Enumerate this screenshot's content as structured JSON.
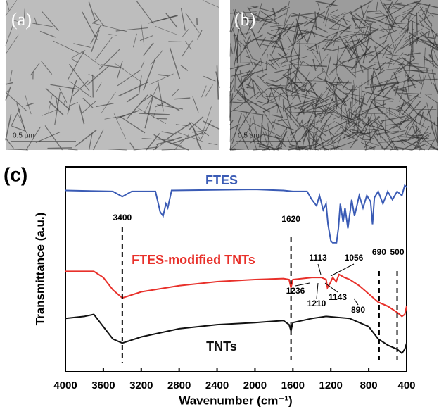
{
  "panels": [
    {
      "label": "(a)",
      "scale_bar": "0.5 μm"
    },
    {
      "label": "(b)",
      "scale_bar": "0.5 μm"
    }
  ],
  "chart_data": {
    "type": "line",
    "label": "(c)",
    "x_label": "Wavenumber (cm⁻¹)",
    "y_label": "Transmittance (a.u.)",
    "xlim": [
      4000,
      400
    ],
    "ylim": [
      0,
      100
    ],
    "xticks": [
      4000,
      3600,
      3200,
      2800,
      2400,
      2000,
      1600,
      1200,
      800,
      400
    ],
    "series": [
      {
        "name": "FTES",
        "color": "#3a5bb5",
        "x": [
          4000,
          3500,
          3400,
          3300,
          3050,
          3000,
          2970,
          2940,
          2920,
          2880,
          2000,
          1700,
          1600,
          1450,
          1400,
          1350,
          1320,
          1280,
          1250,
          1230,
          1200,
          1180,
          1140,
          1120,
          1100,
          1070,
          1050,
          1020,
          980,
          950,
          900,
          860,
          820,
          780,
          760,
          740,
          700,
          650,
          600,
          550,
          500,
          450,
          420,
          400
        ],
        "values": [
          88.5,
          88,
          85.5,
          88,
          88,
          78,
          76,
          82,
          80,
          88.5,
          89,
          88.5,
          88,
          88,
          84,
          81,
          86,
          79,
          82,
          72,
          64,
          63,
          63,
          70,
          82,
          73,
          80,
          70,
          84,
          76,
          86,
          80,
          86,
          83,
          72,
          85,
          88,
          82,
          88,
          84,
          88,
          86,
          91,
          90
        ]
      },
      {
        "name": "FTES-modified TNTs",
        "color": "#e8302a",
        "x": [
          4000,
          3700,
          3600,
          3500,
          3400,
          3200,
          2800,
          2400,
          2000,
          1700,
          1640,
          1620,
          1600,
          1400,
          1300,
          1250,
          1236,
          1210,
          1180,
          1143,
          1113,
          1056,
          1000,
          900,
          800,
          700,
          600,
          500,
          450,
          420,
          400
        ],
        "values": [
          49,
          49,
          46,
          40,
          36,
          39,
          42,
          44,
          45,
          45.5,
          45,
          41,
          45,
          46,
          46,
          45,
          41,
          43,
          46,
          44,
          47.5,
          46,
          45,
          42,
          38,
          34,
          32,
          29,
          27,
          28,
          32
        ]
      },
      {
        "name": "TNTs",
        "color": "#111111",
        "x": [
          4000,
          3800,
          3700,
          3600,
          3500,
          3400,
          3200,
          2800,
          2400,
          2000,
          1700,
          1640,
          1620,
          1600,
          1400,
          1250,
          1000,
          800,
          700,
          600,
          500,
          450,
          420,
          400
        ],
        "values": [
          26,
          27,
          28,
          22,
          16,
          14,
          17,
          21,
          23,
          24,
          25,
          23,
          20,
          24,
          26,
          27,
          26,
          22,
          16,
          13,
          11,
          9,
          11,
          14
        ]
      }
    ],
    "peak_markers": [
      3400,
      1620,
      690,
      500
    ],
    "peak_labels": [
      1113,
      1056,
      1236,
      1210,
      1143,
      890
    ]
  }
}
